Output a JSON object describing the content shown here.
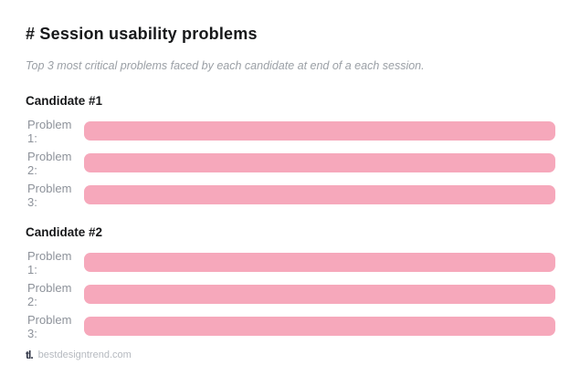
{
  "header": {
    "title": "# Session usability problems",
    "subtitle": "Top 3 most critical problems faced by each candidate at end of a each session."
  },
  "sections": [
    {
      "heading": "Candidate #1",
      "rows": [
        {
          "label": "Problem 1:",
          "value": ""
        },
        {
          "label": "Problem 2:",
          "value": ""
        },
        {
          "label": "Problem 3:",
          "value": ""
        }
      ]
    },
    {
      "heading": "Candidate #2",
      "rows": [
        {
          "label": "Problem 1:",
          "value": ""
        },
        {
          "label": "Problem 2:",
          "value": ""
        },
        {
          "label": "Problem 3:",
          "value": ""
        }
      ]
    }
  ],
  "footer": {
    "logo_glyph": "tl.",
    "site": "bestdesigntrend.com"
  },
  "colors": {
    "bar_pink": "#F6A8BB",
    "heading_text": "#17181A",
    "label_text": "#8D929A",
    "subtitle_text": "#9BA0A6",
    "footer_text": "#B5B9BF",
    "logo": "#2E3344"
  }
}
